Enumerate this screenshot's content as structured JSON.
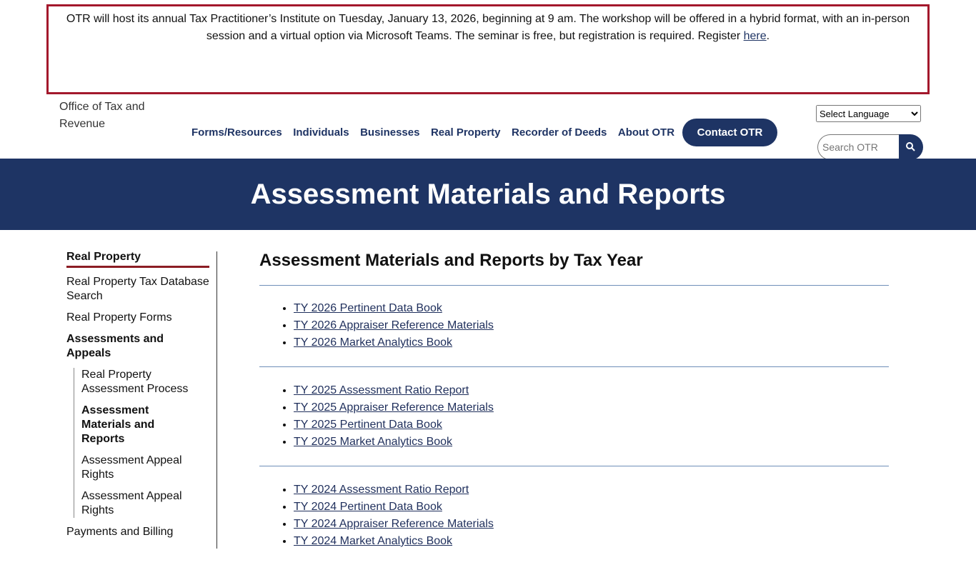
{
  "alert": {
    "text": "OTR will host its annual Tax Practitioner’s Institute on Tuesday, January 13, 2026, beginning at 9 am. The workshop will be offered in a hybrid format, with an in-person session and a virtual option via Microsoft Teams. The seminar is free, but registration is required. Register ",
    "link": "here",
    "end": "."
  },
  "header": {
    "logo_alt": "Office of Tax and Revenue",
    "nav": [
      "Forms/Resources",
      "Individuals",
      "Businesses",
      "Real Property",
      "Recorder of Deeds",
      "About OTR"
    ],
    "contact": "Contact OTR",
    "language": "Select Language",
    "search_placeholder": "Search OTR"
  },
  "banner": {
    "title": "Assessment Materials and Reports"
  },
  "sidebar": {
    "heading": "Real Property",
    "items": [
      {
        "label": "Real Property Tax Database Search"
      },
      {
        "label": "Real Property Forms"
      },
      {
        "label": "Assessments and Appeals",
        "current": true,
        "children": [
          {
            "label": "Real Property Assessment Process"
          },
          {
            "label": "Assessment Materials and Reports",
            "current": true
          },
          {
            "label": "Assessment Appeal Rights"
          },
          {
            "label": "Assessment Appeal Rights"
          }
        ]
      },
      {
        "label": "Payments and Billing"
      }
    ]
  },
  "main": {
    "heading": "Assessment Materials and Reports by Tax Year",
    "groups": [
      [
        "TY 2026 Pertinent Data Book",
        "TY 2026 Appraiser Reference Materials",
        "TY 2026 Market Analytics Book"
      ],
      [
        "TY 2025 Assessment Ratio Report",
        "TY 2025 Appraiser Reference Materials",
        "TY 2025 Pertinent Data Book",
        "TY 2025 Market Analytics Book"
      ],
      [
        "TY 2024 Assessment Ratio Report",
        "TY 2024 Pertinent Data Book",
        "TY 2024 Appraiser Reference Materials",
        "TY 2024 Market Analytics Book"
      ]
    ]
  }
}
